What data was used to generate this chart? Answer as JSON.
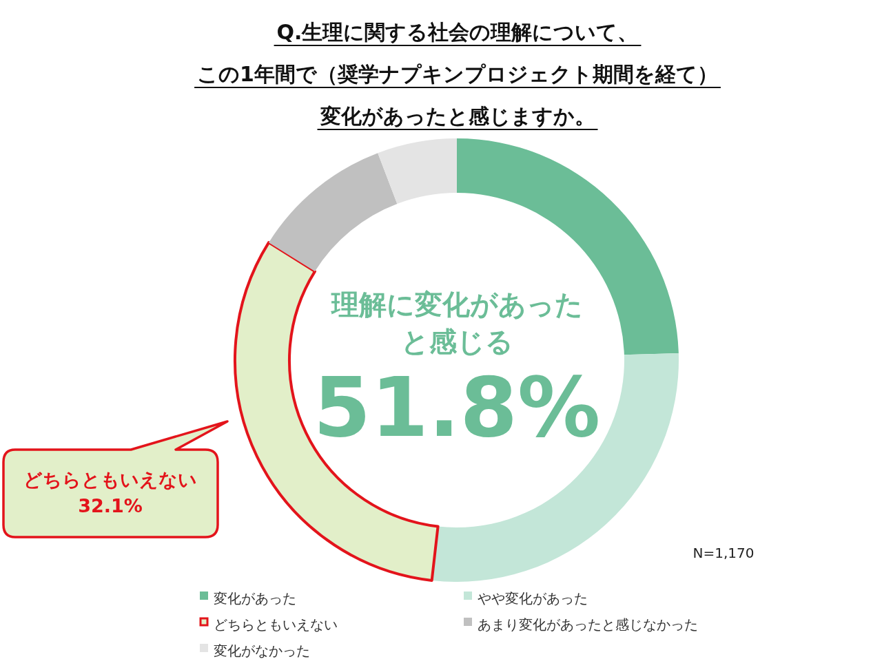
{
  "chart_data": {
    "type": "donut",
    "title": "Q.生理に関する社会の理解について、",
    "subtitle": "この1年間で（奨学ナプキンプロジェクト期間を経て）",
    "categories": [
      "変化があった",
      "やや変化があった",
      "どちらともいえない",
      "あまり変化があったと感じなかった",
      "変化がなかった"
    ],
    "values": [
      24.5,
      27.3,
      32.1,
      10.3,
      5.8
    ],
    "colors": [
      "#6bbd97",
      "#c3e6d8",
      "#e2efc9",
      "#c0c0c0",
      "#e4e4e4"
    ],
    "legend": "bottom",
    "annotations": [
      "変化があったと感じますか。",
      "理解に変化があった",
      "と感じる",
      "51.8%",
      "32.1%",
      "N=1,170",
      {
        "text": "どちらともいえない",
        "x": "どちらともいえない"
      }
    ]
  }
}
